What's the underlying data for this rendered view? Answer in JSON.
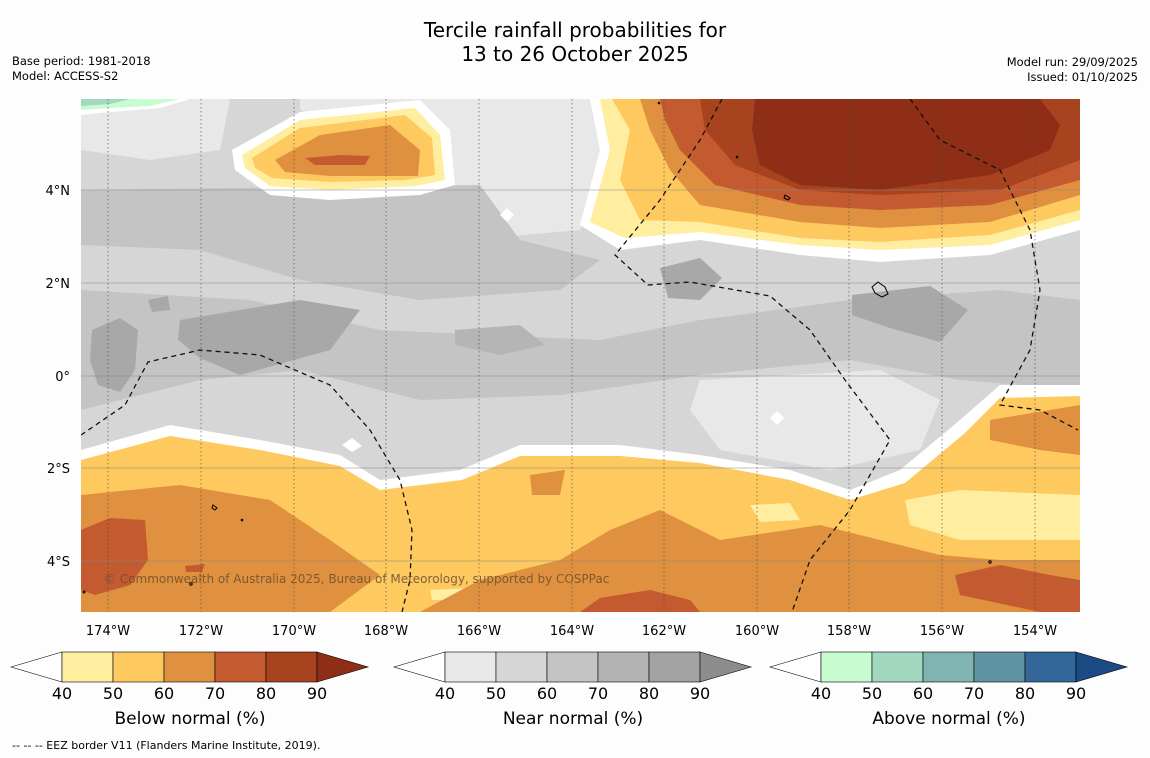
{
  "title": {
    "line1": "Tercile rainfall probabilities for",
    "line2": "13 to 26 October 2025"
  },
  "meta": {
    "base_period": "Base period: 1981-2018",
    "model": "Model: ACCESS-S2",
    "model_run": "Model run: 29/09/2025",
    "issued": "Issued: 01/10/2025"
  },
  "map": {
    "lon_ticks": [
      "174°W",
      "172°W",
      "170°W",
      "168°W",
      "166°W",
      "164°W",
      "162°W",
      "160°W",
      "158°W",
      "156°W",
      "154°W"
    ],
    "lat_ticks": [
      "4°N",
      "2°N",
      "0°",
      "2°S",
      "4°S"
    ],
    "copyright": "© Commonwealth of Australia 2025, Bureau of Meteorology, supported by COSPPac"
  },
  "colorbars": [
    {
      "label": "Below normal (%)",
      "ticks": [
        "40",
        "50",
        "60",
        "70",
        "80",
        "90"
      ],
      "colors": [
        "#ffffff",
        "#ffeda0",
        "#fec95f",
        "#e0913f",
        "#c45a2f",
        "#a8431f",
        "#8e2e16"
      ]
    },
    {
      "label": "Near normal (%)",
      "ticks": [
        "40",
        "50",
        "60",
        "70",
        "80",
        "90"
      ],
      "colors": [
        "#ffffff",
        "#e8e8e8",
        "#d6d6d6",
        "#c4c4c4",
        "#b3b3b3",
        "#a3a3a3",
        "#8c8c8c"
      ]
    },
    {
      "label": "Above normal (%)",
      "ticks": [
        "40",
        "50",
        "60",
        "70",
        "80",
        "90"
      ],
      "colors": [
        "#ffffff",
        "#c8fcd0",
        "#a2d8c0",
        "#80b4b0",
        "#5e94a4",
        "#33679a",
        "#1c4a84"
      ]
    }
  ],
  "footnote": "--  --  -- EEZ border V11 (Flanders Marine Institute, 2019)."
}
